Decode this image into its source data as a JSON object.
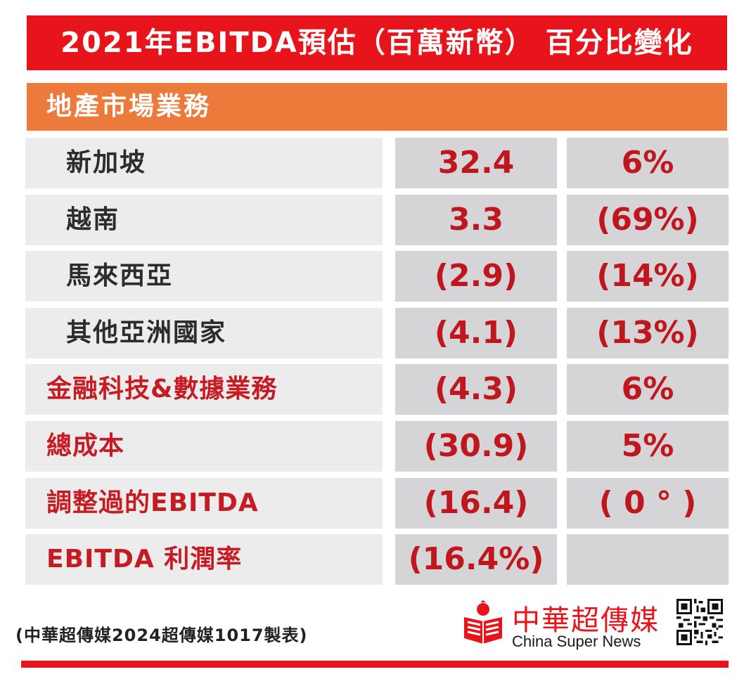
{
  "title": "2021年EBITDA預估（百萬新幣） 百分比變化",
  "section": "地產市場業務",
  "rows": [
    {
      "label": "新加坡",
      "value": "32.4",
      "change": "6%"
    },
    {
      "label": "越南",
      "value": "3.3",
      "change": "(69%)"
    },
    {
      "label": "馬來西亞",
      "value": "(2.9)",
      "change": "(14%)"
    },
    {
      "label": "其他亞洲國家",
      "value": "(4.1)",
      "change": "(13%)"
    },
    {
      "label": "金融科技&數據業務",
      "value": "(4.3)",
      "change": "6%"
    },
    {
      "label": "總成本",
      "value": "(30.9)",
      "change": "5%"
    },
    {
      "label": "調整過的EBITDA",
      "value": "(16.4)",
      "change": "( 0 ° )"
    },
    {
      "label": "EBITDA 利潤率",
      "value": "(16.4%)",
      "change": ""
    }
  ],
  "footnote": "(中華超傳媒2024超傳媒1017製表)",
  "logo": {
    "chinese": "中華超傳媒",
    "english": "China Super News",
    "icon": "reading-person-logo-icon"
  },
  "qr_icon": "qr-code-icon",
  "colors": {
    "title_bg": "#e8141b",
    "section_bg": "#ec7a3b",
    "value_text": "#c0161e",
    "label_cell_bg": "#ececec",
    "value_cell_bg": "#d5d5d7"
  }
}
